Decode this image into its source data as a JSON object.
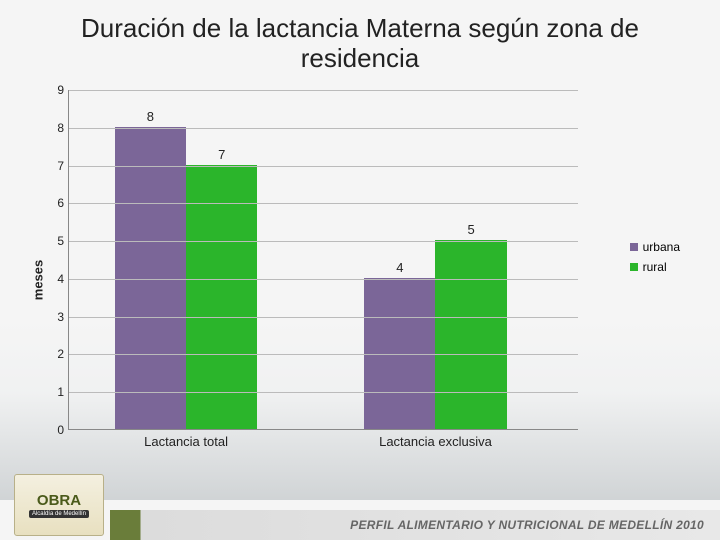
{
  "title": "Duración de la lactancia Materna según zona de residencia",
  "chart": {
    "type": "bar",
    "ylabel": "meses",
    "ylim": [
      0,
      9
    ],
    "ytick_step": 1,
    "categories": [
      "Lactancia total",
      "Lactancia exclusiva"
    ],
    "series": [
      {
        "name": "urbana",
        "color": "#7b6698",
        "values": [
          8,
          4
        ]
      },
      {
        "name": "rural",
        "color": "#2bb52b",
        "values": [
          7,
          5
        ]
      }
    ],
    "group_positions_pct": [
      23,
      72
    ],
    "bar_width_pct": 14,
    "bar_gap_pct": 0,
    "background_color": "#f5f5f5",
    "grid_color": "#bbbbbb",
    "label_fontsize": 13,
    "title_fontsize": 26
  },
  "legend": {
    "items": [
      {
        "label": "urbana",
        "color": "#7b6698"
      },
      {
        "label": "rural",
        "color": "#2bb52b"
      }
    ]
  },
  "footer": {
    "brand_line1": "OBRA",
    "brand_line2": "Alcaldía de Medellín",
    "caption": "PERFIL ALIMENTARIO Y NUTRICIONAL DE MEDELLÍN 2010"
  }
}
